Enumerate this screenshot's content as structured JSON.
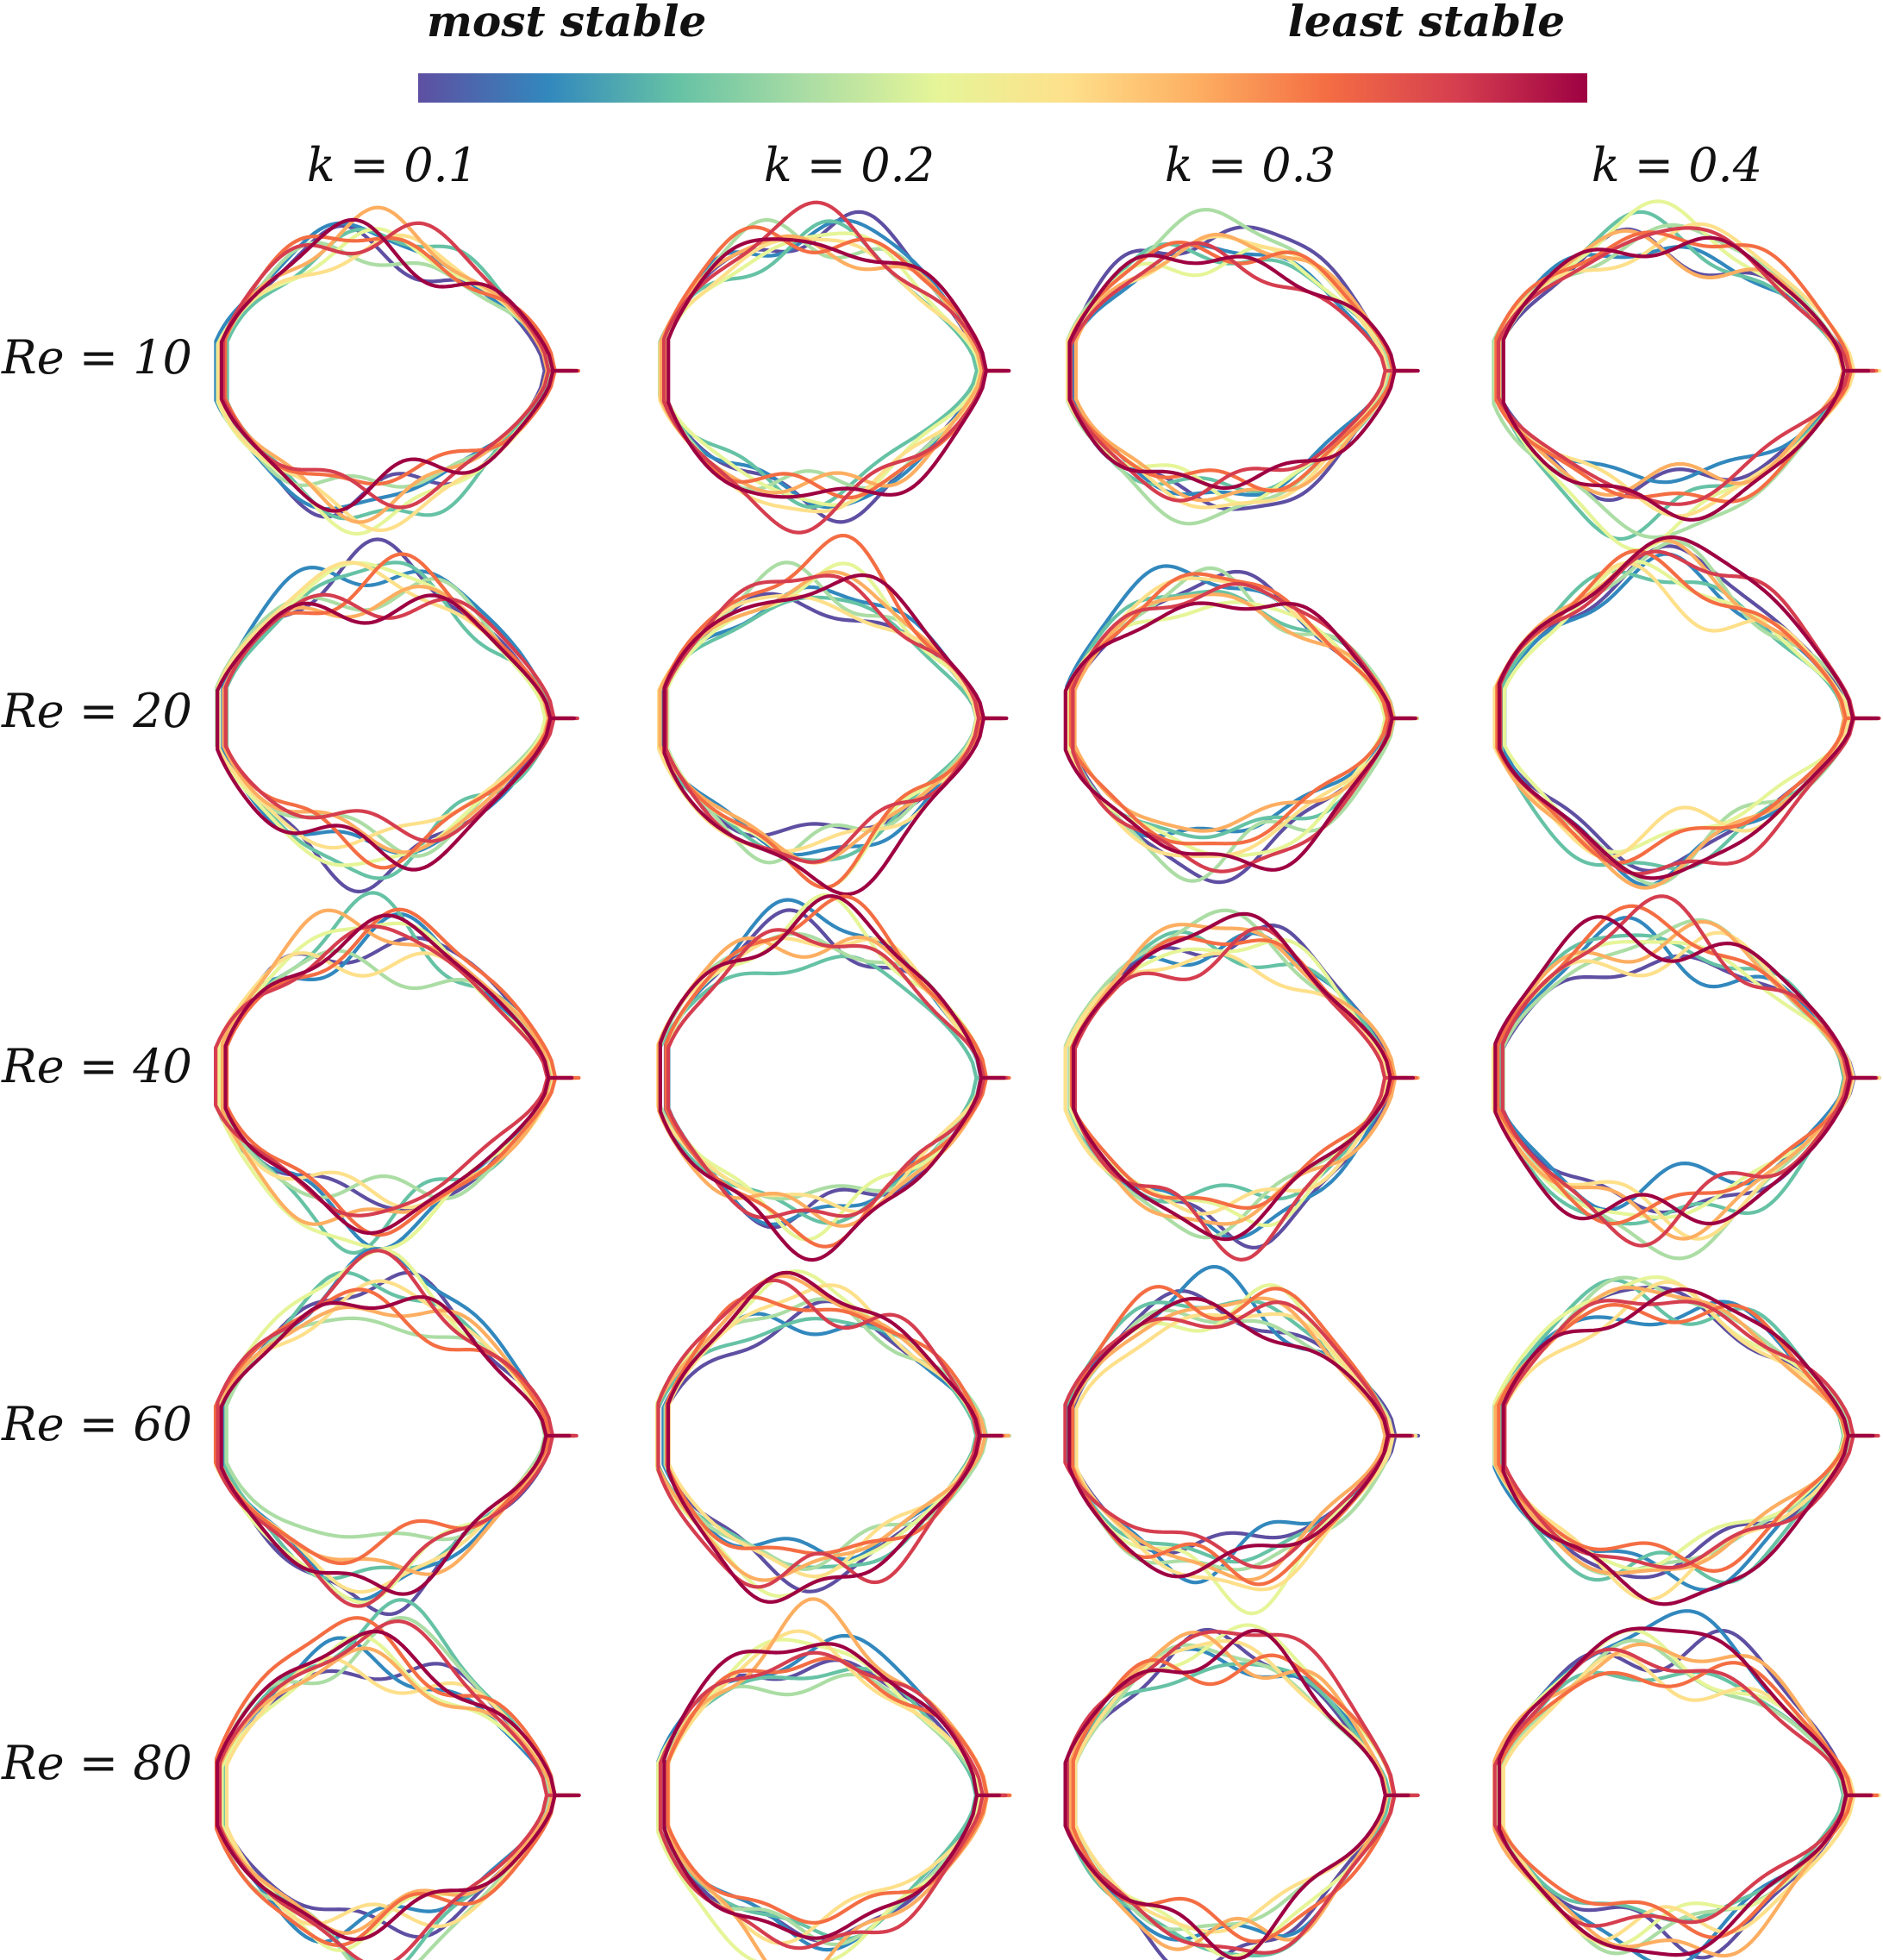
{
  "colorbar": {
    "left_label": "most stable",
    "right_label": "least stable",
    "colormap": [
      "#5e4fa2",
      "#3288bd",
      "#66c2a5",
      "#abdda4",
      "#e6f598",
      "#fee08b",
      "#fdae61",
      "#f46d43",
      "#d53e4f",
      "#9e0142"
    ]
  },
  "columns": [
    {
      "label": "k = 0.1"
    },
    {
      "label": "k = 0.2"
    },
    {
      "label": "k = 0.3"
    },
    {
      "label": "k = 0.4"
    }
  ],
  "rows": [
    {
      "label": "Re = 10"
    },
    {
      "label": "Re = 20"
    },
    {
      "label": "Re = 40"
    },
    {
      "label": "Re = 60"
    },
    {
      "label": "Re = 80"
    }
  ],
  "curves_per_panel": 10
}
